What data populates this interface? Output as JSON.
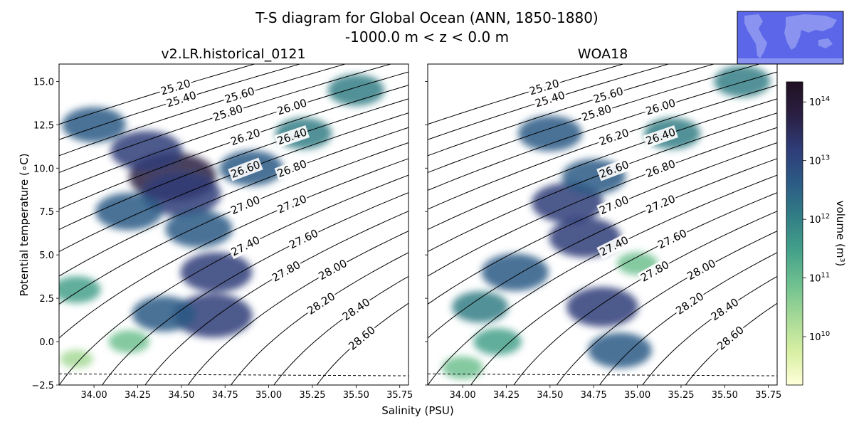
{
  "figure": {
    "title_line1": "T-S diagram for Global Ocean (ANN, 1850-1880)",
    "title_line2": "-1000.0 m < z < 0.0 m",
    "xlabel": "Salinity (PSU)",
    "ylabel": "Potential temperature (∘C)",
    "inset_map": {
      "ocean_color": "#5b67e8",
      "land_color": "#8a93f0",
      "border_color": "#000000"
    }
  },
  "chart_data": [
    {
      "type": "heatmap",
      "title": "v2.LR.historical_0121",
      "xlim": [
        33.8,
        35.8
      ],
      "ylim": [
        -2.5,
        16.0
      ],
      "xticks": [
        34.0,
        34.25,
        34.5,
        34.75,
        35.0,
        35.25,
        35.5,
        35.75
      ],
      "xtick_labels": [
        "34.00",
        "34.25",
        "34.50",
        "34.75",
        "35.00",
        "35.25",
        "35.50",
        "35.75"
      ],
      "yticks": [
        -2.5,
        0.0,
        2.5,
        5.0,
        7.5,
        10.0,
        12.5,
        15.0
      ],
      "ytick_labels": [
        "−2.5",
        "0.0",
        "2.5",
        "5.0",
        "7.5",
        "10.0",
        "12.5",
        "15.0"
      ],
      "show_ytick_labels": true,
      "density_contours": [
        {
          "sigma": 25.2,
          "label": "25.20"
        },
        {
          "sigma": 25.4,
          "label": "25.40"
        },
        {
          "sigma": 25.6,
          "label": "25.60"
        },
        {
          "sigma": 25.8,
          "label": "25.80"
        },
        {
          "sigma": 26.0,
          "label": "26.00"
        },
        {
          "sigma": 26.2,
          "label": "26.20"
        },
        {
          "sigma": 26.4,
          "label": "26.40"
        },
        {
          "sigma": 26.6,
          "label": "26.60"
        },
        {
          "sigma": 26.8,
          "label": "26.80"
        },
        {
          "sigma": 27.0,
          "label": "27.00"
        },
        {
          "sigma": 27.2,
          "label": "27.20"
        },
        {
          "sigma": 27.4,
          "label": "27.40"
        },
        {
          "sigma": 27.6,
          "label": "27.60"
        },
        {
          "sigma": 27.8,
          "label": "27.80"
        },
        {
          "sigma": 28.0,
          "label": "28.00"
        },
        {
          "sigma": 28.2,
          "label": "28.20"
        },
        {
          "sigma": 28.4,
          "label": "28.40"
        },
        {
          "sigma": 28.6,
          "label": "28.60"
        }
      ],
      "freezing_line": {
        "style": "dashed",
        "points": [
          [
            33.8,
            -1.86
          ],
          [
            35.8,
            -1.97
          ]
        ]
      },
      "volume_features": [
        {
          "s": 34.45,
          "t": 9.5,
          "volume": 100000000000000.0
        },
        {
          "s": 34.5,
          "t": 8.5,
          "volume": 30000000000000.0
        },
        {
          "s": 34.3,
          "t": 11.0,
          "volume": 10000000000000.0
        },
        {
          "s": 34.7,
          "t": 4.0,
          "volume": 10000000000000.0
        },
        {
          "s": 34.68,
          "t": 1.5,
          "volume": 30000000000000.0
        },
        {
          "s": 34.6,
          "t": 6.5,
          "volume": 5000000000000.0
        },
        {
          "s": 34.2,
          "t": 7.5,
          "volume": 5000000000000.0
        },
        {
          "s": 34.0,
          "t": 12.5,
          "volume": 3000000000000.0
        },
        {
          "s": 34.4,
          "t": 1.6,
          "volume": 3000000000000.0
        },
        {
          "s": 34.9,
          "t": 10.0,
          "volume": 3000000000000.0
        },
        {
          "s": 35.2,
          "t": 12.0,
          "volume": 1000000000000.0
        },
        {
          "s": 35.5,
          "t": 14.5,
          "volume": 1000000000000.0
        },
        {
          "s": 33.9,
          "t": 3.0,
          "volume": 300000000000.0
        },
        {
          "s": 34.2,
          "t": 0.0,
          "volume": 100000000000.0
        },
        {
          "s": 33.9,
          "t": -1.0,
          "volume": 30000000000.0
        }
      ]
    },
    {
      "type": "heatmap",
      "title": "WOA18",
      "xlim": [
        33.8,
        35.8
      ],
      "ylim": [
        -2.5,
        16.0
      ],
      "xticks": [
        34.0,
        34.25,
        34.5,
        34.75,
        35.0,
        35.25,
        35.5,
        35.75
      ],
      "xtick_labels": [
        "34.00",
        "34.25",
        "34.50",
        "34.75",
        "35.00",
        "35.25",
        "35.50",
        "35.75"
      ],
      "yticks": [
        -2.5,
        0.0,
        2.5,
        5.0,
        7.5,
        10.0,
        12.5,
        15.0
      ],
      "ytick_labels": [
        "−2.5",
        "0.0",
        "2.5",
        "5.0",
        "7.5",
        "10.0",
        "12.5",
        "15.0"
      ],
      "show_ytick_labels": false,
      "density_contours": [
        {
          "sigma": 25.2,
          "label": "25.20"
        },
        {
          "sigma": 25.4,
          "label": "25.40"
        },
        {
          "sigma": 25.6,
          "label": "25.60"
        },
        {
          "sigma": 25.8,
          "label": "25.80"
        },
        {
          "sigma": 26.0,
          "label": "26.00"
        },
        {
          "sigma": 26.2,
          "label": "26.20"
        },
        {
          "sigma": 26.4,
          "label": "26.40"
        },
        {
          "sigma": 26.6,
          "label": "26.60"
        },
        {
          "sigma": 26.8,
          "label": "26.80"
        },
        {
          "sigma": 27.0,
          "label": "27.00"
        },
        {
          "sigma": 27.2,
          "label": "27.20"
        },
        {
          "sigma": 27.4,
          "label": "27.40"
        },
        {
          "sigma": 27.6,
          "label": "27.60"
        },
        {
          "sigma": 27.8,
          "label": "27.80"
        },
        {
          "sigma": 28.0,
          "label": "28.00"
        },
        {
          "sigma": 28.2,
          "label": "28.20"
        },
        {
          "sigma": 28.4,
          "label": "28.40"
        },
        {
          "sigma": 28.6,
          "label": "28.60"
        }
      ],
      "freezing_line": {
        "style": "dashed",
        "points": [
          [
            33.8,
            -1.86
          ],
          [
            35.8,
            -1.97
          ]
        ]
      },
      "volume_features": [
        {
          "s": 34.6,
          "t": 8.0,
          "volume": 10000000000000.0
        },
        {
          "s": 34.7,
          "t": 6.0,
          "volume": 10000000000000.0
        },
        {
          "s": 34.8,
          "t": 2.0,
          "volume": 10000000000000.0
        },
        {
          "s": 34.3,
          "t": 4.0,
          "volume": 5000000000000.0
        },
        {
          "s": 34.75,
          "t": 9.5,
          "volume": 3000000000000.0
        },
        {
          "s": 34.5,
          "t": 12.0,
          "volume": 3000000000000.0
        },
        {
          "s": 35.2,
          "t": 12.0,
          "volume": 1000000000000.0
        },
        {
          "s": 34.9,
          "t": -0.5,
          "volume": 3000000000000.0
        },
        {
          "s": 35.6,
          "t": 15.0,
          "volume": 1000000000000.0
        },
        {
          "s": 34.1,
          "t": 2.0,
          "volume": 1000000000000.0
        },
        {
          "s": 34.2,
          "t": 0.0,
          "volume": 300000000000.0
        },
        {
          "s": 34.0,
          "t": -1.5,
          "volume": 100000000000.0
        },
        {
          "s": 35.0,
          "t": 4.5,
          "volume": 100000000000.0
        }
      ]
    }
  ],
  "colorbar": {
    "label": "volume (m³)",
    "scale": "log",
    "range": [
      1500000000.0,
      220000000000000.0
    ],
    "ticks": [
      {
        "value": 10000000000.0,
        "base": "10",
        "exp": "10"
      },
      {
        "value": 100000000000.0,
        "base": "10",
        "exp": "11"
      },
      {
        "value": 1000000000000.0,
        "base": "10",
        "exp": "12"
      },
      {
        "value": 10000000000000.0,
        "base": "10",
        "exp": "13"
      },
      {
        "value": 100000000000000.0,
        "base": "10",
        "exp": "14"
      }
    ],
    "colormap": [
      "#ffffd9",
      "#d7efa2",
      "#a6d997",
      "#6ec08f",
      "#44a08a",
      "#317e85",
      "#2c5b85",
      "#2f3c78",
      "#2a2043",
      "#211022"
    ]
  }
}
